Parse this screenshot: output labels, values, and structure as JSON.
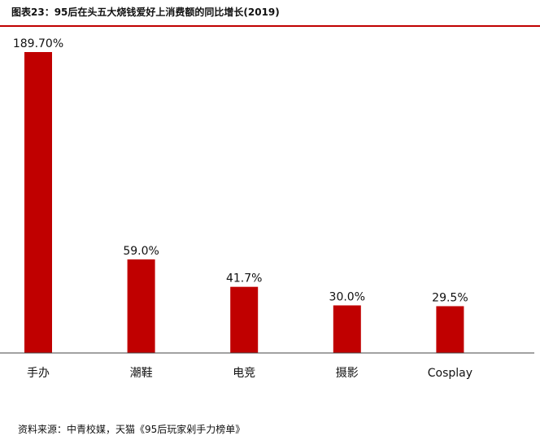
{
  "title": "图表23：95后在头五大烧钱爱好上消费额的同比增长(2019)",
  "source": "资料来源：中青校媒，天猫《95后玩家剁手力榜单》",
  "colors": {
    "bar": "#c00000",
    "accent_rule": "#c00000",
    "axis": "#444444"
  },
  "chart_data": {
    "type": "bar",
    "categories": [
      "手办",
      "潮鞋",
      "电竞",
      "摄影",
      "Cosplay"
    ],
    "values": [
      189.7,
      59.0,
      41.7,
      30.0,
      29.5
    ],
    "data_labels": [
      "189.70%",
      "59.0%",
      "41.7%",
      "30.0%",
      "29.5%"
    ],
    "title": "图表23：95后在头五大烧钱爱好上消费额的同比增长(2019)",
    "xlabel": "",
    "ylabel": "",
    "ylim": [
      0,
      189.7
    ],
    "grid": false,
    "legend": "none"
  }
}
